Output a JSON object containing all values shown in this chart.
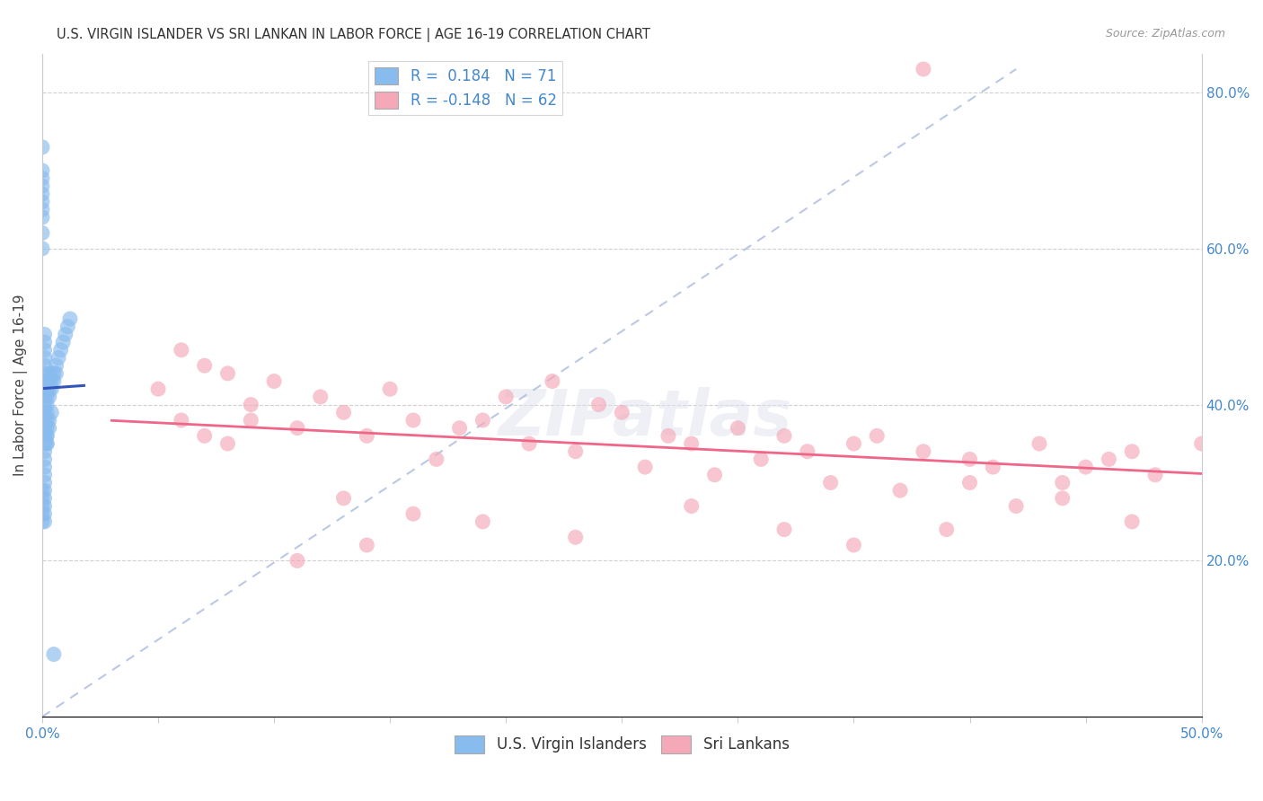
{
  "title": "U.S. VIRGIN ISLANDER VS SRI LANKAN IN LABOR FORCE | AGE 16-19 CORRELATION CHART",
  "source": "Source: ZipAtlas.com",
  "ylabel": "In Labor Force | Age 16-19",
  "xlim": [
    0.0,
    0.5
  ],
  "ylim": [
    0.0,
    0.85
  ],
  "background_color": "#ffffff",
  "grid_color": "#d0d0d0",
  "watermark_text": "ZIPatlas",
  "blue_color": "#88bbee",
  "pink_color": "#f4a8b8",
  "blue_line_color": "#3355bb",
  "pink_line_color": "#ee6688",
  "diag_color": "#aabbdd",
  "legend_R1": "0.184",
  "legend_N1": "71",
  "legend_R2": "-0.148",
  "legend_N2": "62",
  "label1": "U.S. Virgin Islanders",
  "label2": "Sri Lankans",
  "blue_x": [
    0.0,
    0.0,
    0.0,
    0.0,
    0.0,
    0.0,
    0.0,
    0.0,
    0.0,
    0.0,
    0.001,
    0.001,
    0.001,
    0.001,
    0.001,
    0.001,
    0.001,
    0.001,
    0.001,
    0.001,
    0.001,
    0.001,
    0.001,
    0.001,
    0.001,
    0.001,
    0.001,
    0.001,
    0.001,
    0.001,
    0.002,
    0.002,
    0.002,
    0.002,
    0.002,
    0.002,
    0.002,
    0.002,
    0.002,
    0.003,
    0.003,
    0.003,
    0.003,
    0.004,
    0.004,
    0.005,
    0.005,
    0.006,
    0.006,
    0.007,
    0.008,
    0.009,
    0.01,
    0.011,
    0.012,
    0.0,
    0.0,
    0.0,
    0.0,
    0.0,
    0.001,
    0.001,
    0.001,
    0.001,
    0.001,
    0.002,
    0.002,
    0.003,
    0.003,
    0.004,
    0.005
  ],
  "blue_y": [
    0.73,
    0.7,
    0.69,
    0.68,
    0.67,
    0.66,
    0.65,
    0.64,
    0.62,
    0.6,
    0.49,
    0.48,
    0.47,
    0.46,
    0.45,
    0.44,
    0.43,
    0.42,
    0.41,
    0.4,
    0.39,
    0.38,
    0.37,
    0.36,
    0.35,
    0.34,
    0.33,
    0.32,
    0.31,
    0.3,
    0.43,
    0.42,
    0.41,
    0.4,
    0.39,
    0.38,
    0.37,
    0.36,
    0.35,
    0.44,
    0.43,
    0.42,
    0.41,
    0.43,
    0.42,
    0.44,
    0.43,
    0.45,
    0.44,
    0.46,
    0.47,
    0.48,
    0.49,
    0.5,
    0.51,
    0.29,
    0.28,
    0.27,
    0.26,
    0.25,
    0.29,
    0.28,
    0.27,
    0.26,
    0.25,
    0.36,
    0.35,
    0.37,
    0.38,
    0.39,
    0.08
  ],
  "pink_x": [
    0.38,
    0.05,
    0.07,
    0.08,
    0.06,
    0.1,
    0.09,
    0.12,
    0.15,
    0.13,
    0.06,
    0.07,
    0.09,
    0.11,
    0.08,
    0.14,
    0.16,
    0.2,
    0.19,
    0.22,
    0.24,
    0.18,
    0.25,
    0.27,
    0.3,
    0.28,
    0.23,
    0.32,
    0.17,
    0.35,
    0.38,
    0.4,
    0.43,
    0.45,
    0.47,
    0.21,
    0.26,
    0.29,
    0.31,
    0.33,
    0.36,
    0.41,
    0.44,
    0.46,
    0.48,
    0.13,
    0.16,
    0.34,
    0.37,
    0.42,
    0.39,
    0.5,
    0.14,
    0.11,
    0.19,
    0.23,
    0.28,
    0.32,
    0.35,
    0.4,
    0.44,
    0.47
  ],
  "pink_y": [
    0.83,
    0.42,
    0.45,
    0.44,
    0.47,
    0.43,
    0.4,
    0.41,
    0.42,
    0.39,
    0.38,
    0.36,
    0.38,
    0.37,
    0.35,
    0.36,
    0.38,
    0.41,
    0.38,
    0.43,
    0.4,
    0.37,
    0.39,
    0.36,
    0.37,
    0.35,
    0.34,
    0.36,
    0.33,
    0.35,
    0.34,
    0.33,
    0.35,
    0.32,
    0.34,
    0.35,
    0.32,
    0.31,
    0.33,
    0.34,
    0.36,
    0.32,
    0.3,
    0.33,
    0.31,
    0.28,
    0.26,
    0.3,
    0.29,
    0.27,
    0.24,
    0.35,
    0.22,
    0.2,
    0.25,
    0.23,
    0.27,
    0.24,
    0.22,
    0.3,
    0.28,
    0.25
  ]
}
